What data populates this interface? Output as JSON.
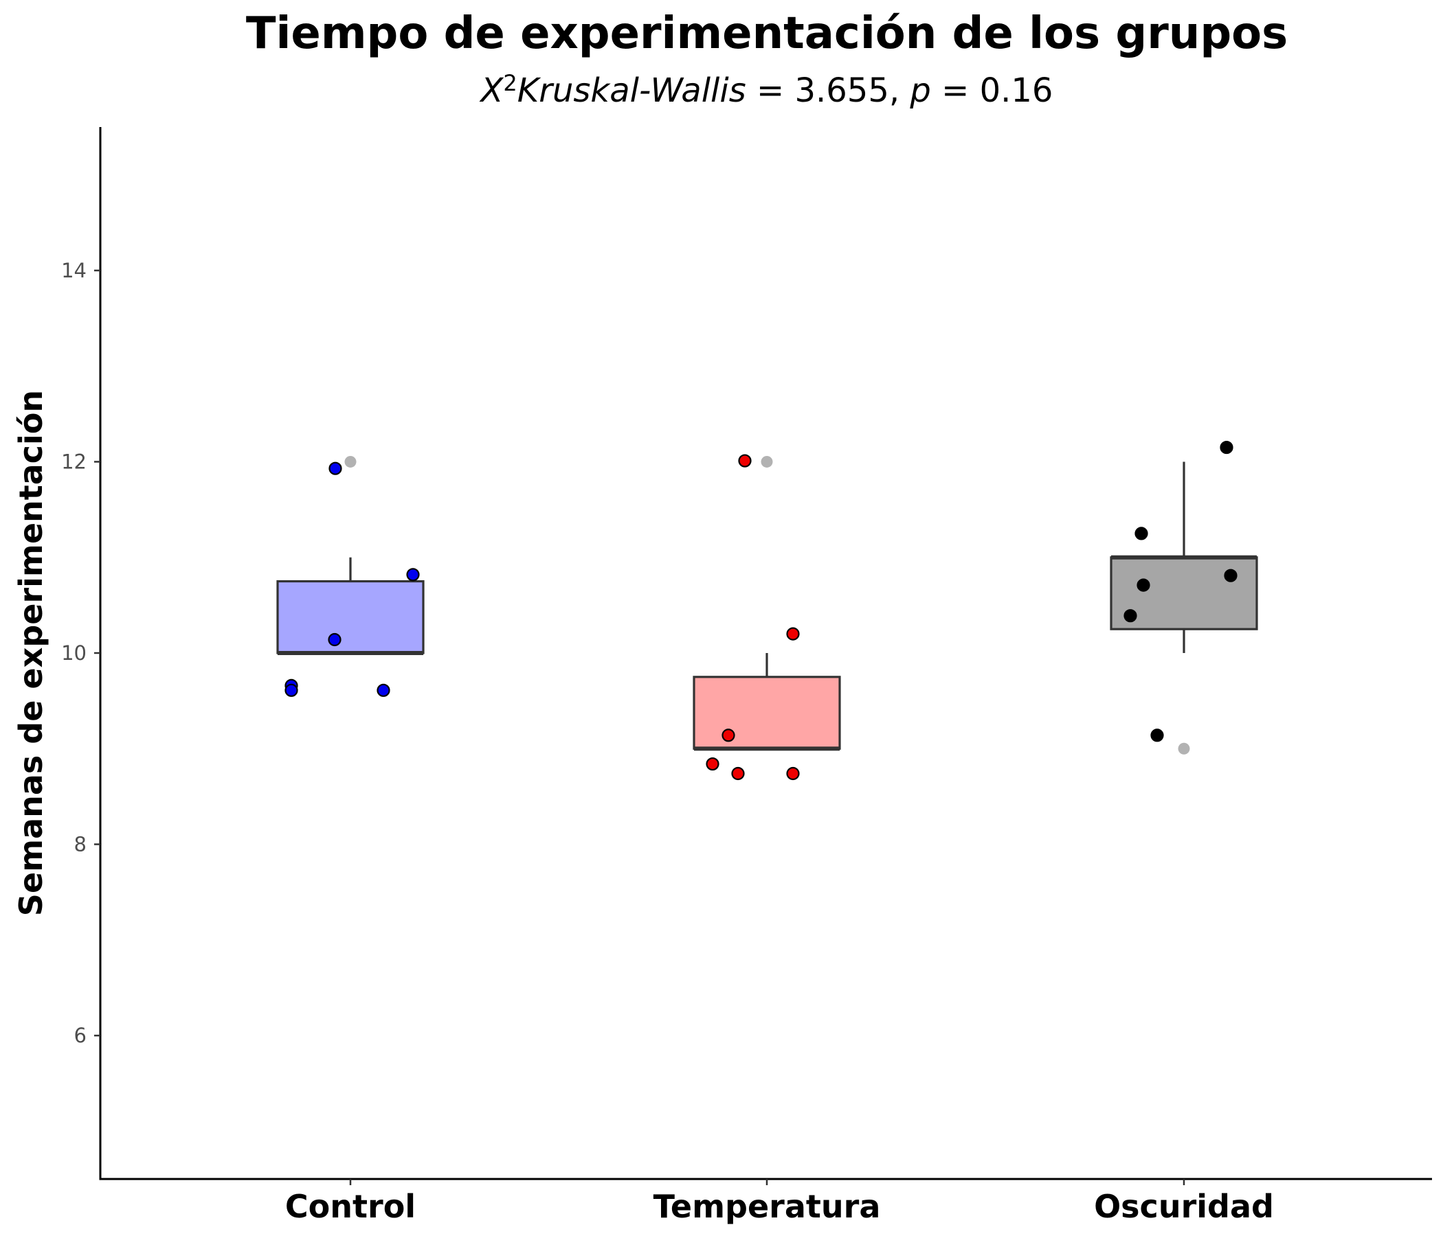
{
  "chart_data": {
    "type": "box",
    "title": "Tiempo de experimentación de los grupos",
    "subtitle": {
      "stat_symbol": "X",
      "stat_superscript": "2",
      "stat_name": "Kruskal-Wallis",
      "stat_eq": " = 3.655, ",
      "p_symbol": "p",
      "p_eq": " = 0.16"
    },
    "xlabel": "",
    "ylabel": "Semanas de experimentación",
    "ylim": [
      4.5,
      15.5
    ],
    "yticks": [
      6,
      8,
      10,
      12,
      14
    ],
    "grid": false,
    "legend": "none",
    "categories": [
      "Control",
      "Temperatura",
      "Oscuridad"
    ],
    "boxes": [
      {
        "group": "Control",
        "min": 10,
        "q1": 10,
        "median": 10,
        "q3": 10.75,
        "max": 11,
        "fill": "#a6a6ff",
        "point_color": "#0000ee"
      },
      {
        "group": "Temperatura",
        "min": 9,
        "q1": 9,
        "median": 9,
        "q3": 9.75,
        "max": 10,
        "fill": "#ffa6a6",
        "point_color": "#ee0000"
      },
      {
        "group": "Oscuridad",
        "min": 10,
        "q1": 10.25,
        "median": 11,
        "q3": 11,
        "max": 12,
        "fill": "#a6a6a6",
        "point_color": "#000000"
      }
    ],
    "outliers": [
      {
        "group": "Control",
        "y": 12
      },
      {
        "group": "Temperatura",
        "y": 12
      },
      {
        "group": "Oscuridad",
        "y": 9
      }
    ],
    "points": [
      {
        "group": "Control",
        "y": 11.93
      },
      {
        "group": "Control",
        "y": 10.82
      },
      {
        "group": "Control",
        "y": 10.14
      },
      {
        "group": "Control",
        "y": 9.66
      },
      {
        "group": "Control",
        "y": 9.61
      },
      {
        "group": "Control",
        "y": 9.61
      },
      {
        "group": "Temperatura",
        "y": 12.01
      },
      {
        "group": "Temperatura",
        "y": 10.2
      },
      {
        "group": "Temperatura",
        "y": 9.14
      },
      {
        "group": "Temperatura",
        "y": 8.84
      },
      {
        "group": "Temperatura",
        "y": 8.74
      },
      {
        "group": "Temperatura",
        "y": 8.74
      },
      {
        "group": "Oscuridad",
        "y": 12.15
      },
      {
        "group": "Oscuridad",
        "y": 11.25
      },
      {
        "group": "Oscuridad",
        "y": 10.81
      },
      {
        "group": "Oscuridad",
        "y": 10.71
      },
      {
        "group": "Oscuridad",
        "y": 10.39
      },
      {
        "group": "Oscuridad",
        "y": 9.14
      }
    ]
  }
}
